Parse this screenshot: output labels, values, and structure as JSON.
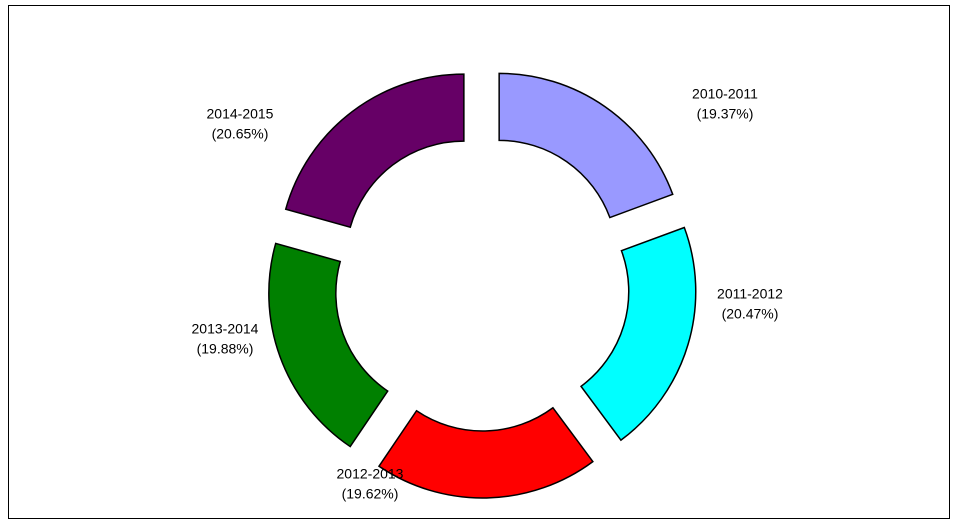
{
  "chart_data": {
    "type": "pie",
    "donut": true,
    "categories": [
      "2010-2011",
      "2011-2012",
      "2012-2013",
      "2013-2014",
      "2014-2015"
    ],
    "values": [
      19.37,
      20.47,
      19.62,
      19.88,
      20.65
    ],
    "value_labels": [
      "(19.37%)",
      "(20.47%)",
      "(19.62%)",
      "(19.88%)",
      "(20.65%)"
    ],
    "colors": [
      "#9999ff",
      "#00ffff",
      "#ff0000",
      "#008000",
      "#660066"
    ]
  }
}
